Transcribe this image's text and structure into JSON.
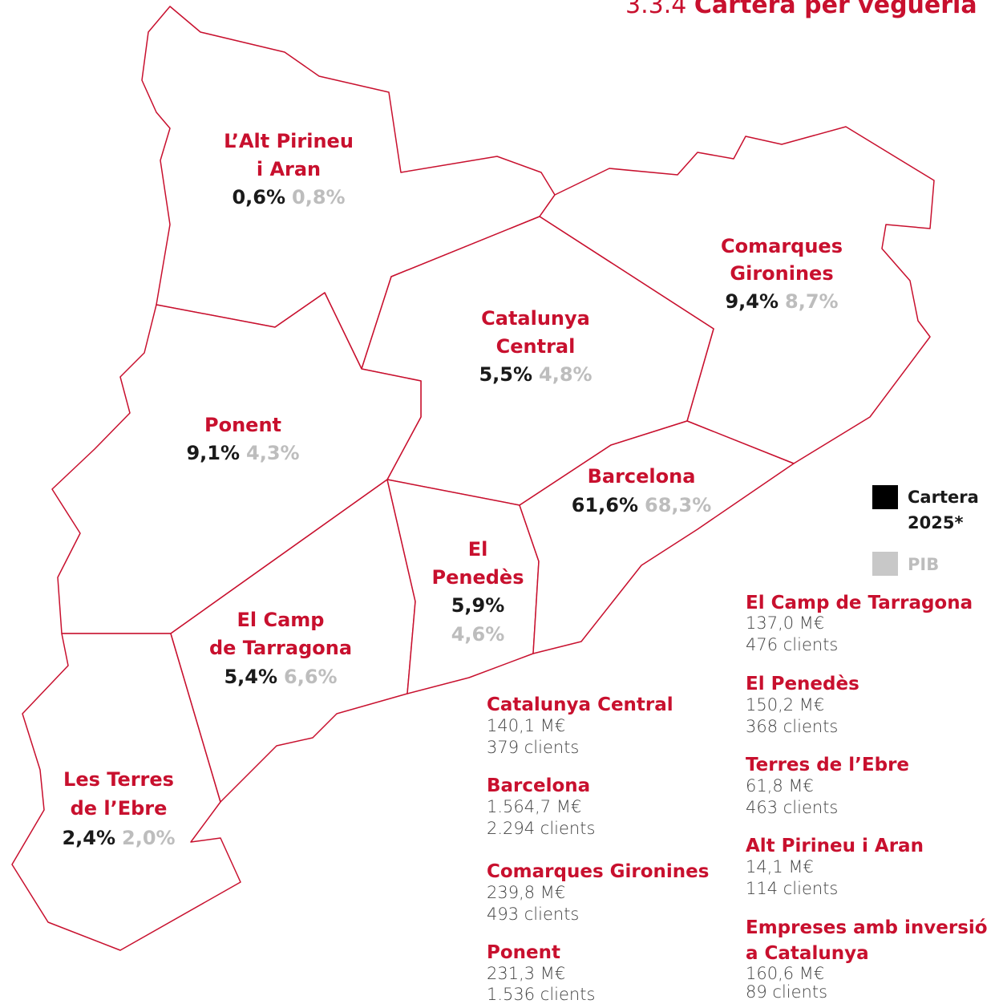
{
  "title": {
    "number": "3.3.4",
    "text": "Cartera per vegueria"
  },
  "regions": [
    {
      "name": [
        "L’Alt Pirineu",
        "i Aran"
      ],
      "cartera": "0,6%",
      "pib": "0,8%"
    },
    {
      "name": [
        "Comarques",
        "Gironines"
      ],
      "cartera": "9,4%",
      "pib": "8,7%"
    },
    {
      "name": [
        "Catalunya",
        "Central"
      ],
      "cartera": "5,5%",
      "pib": "4,8%"
    },
    {
      "name": [
        "Ponent"
      ],
      "cartera": "9,1%",
      "pib": "4,3%"
    },
    {
      "name": [
        "Barcelona"
      ],
      "cartera": "61,6%",
      "pib": "68,3%"
    },
    {
      "name": [
        "El",
        "Penedès"
      ],
      "cartera": "5,9%",
      "pib": "4,6%"
    },
    {
      "name": [
        "El Camp",
        "de Tarragona"
      ],
      "cartera": "5,4%",
      "pib": "6,6%"
    },
    {
      "name": [
        "Les Terres",
        "de l’Ebre"
      ],
      "cartera": "2,4%",
      "pib": "2,0%"
    }
  ],
  "legend": [
    {
      "label": [
        "Cartera",
        "2025*"
      ]
    },
    {
      "label": [
        "PIB"
      ]
    }
  ],
  "details": [
    {
      "name": [
        "Catalunya Central"
      ],
      "amount": "140,1 M€",
      "clients": "379 clients"
    },
    {
      "name": [
        "Barcelona"
      ],
      "amount": "1.564,7 M€",
      "clients": "2.294 clients"
    },
    {
      "name": [
        "Comarques Gironines"
      ],
      "amount": "239,8 M€",
      "clients": "493 clients"
    },
    {
      "name": [
        "Ponent"
      ],
      "amount": "231,3 M€",
      "clients": "1.536 clients"
    },
    {
      "name": [
        "El Camp de Tarragona"
      ],
      "amount": "137,0 M€",
      "clients": "476 clients"
    },
    {
      "name": [
        "El Penedès"
      ],
      "amount": "150,2 M€",
      "clients": "368 clients"
    },
    {
      "name": [
        "Terres de l’Ebre"
      ],
      "amount": "61,8 M€",
      "clients": "463 clients"
    },
    {
      "name": [
        "Alt Pirineu i Aran"
      ],
      "amount": "14,1 M€",
      "clients": "114 clients"
    },
    {
      "name": [
        "Empreses amb inversió",
        "a Catalunya"
      ],
      "amount": "160,6 M€",
      "clients": "89 clients"
    }
  ]
}
